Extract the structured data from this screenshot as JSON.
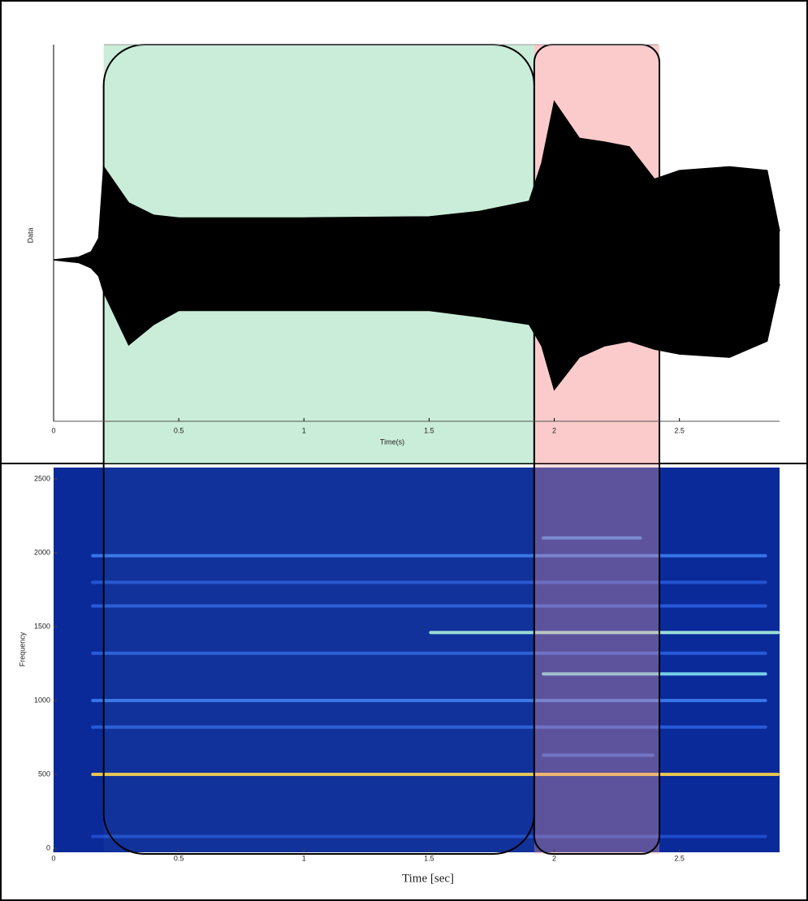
{
  "chart_data": [
    {
      "type": "band",
      "color": "#000000",
      "x": [
        0,
        0.1,
        0.15,
        0.18,
        0.2,
        0.3,
        0.4,
        0.5,
        1.0,
        1.5,
        1.7,
        1.9,
        1.95,
        2.0,
        2.1,
        2.2,
        2.3,
        2.4,
        2.5,
        2.7,
        2.85,
        2.9
      ],
      "upper": [
        0,
        0.05,
        0.15,
        0.4,
        1.73,
        1.06,
        0.83,
        0.78,
        0.78,
        0.8,
        0.9,
        1.09,
        1.8,
        2.94,
        2.26,
        2.19,
        2.1,
        1.5,
        1.66,
        1.73,
        1.66,
        0.53
      ],
      "lower": [
        0,
        -0.05,
        -0.15,
        -0.3,
        -0.6,
        -1.58,
        -1.2,
        -0.94,
        -0.94,
        -0.94,
        -1.06,
        -1.2,
        -1.6,
        -2.41,
        -1.81,
        -1.6,
        -1.51,
        -1.66,
        -1.75,
        -1.81,
        -1.51,
        -0.45
      ],
      "xlabel": "Time(s)",
      "ylabel": "Data",
      "xlim": [
        0,
        2.9
      ],
      "ylim": [
        -3,
        4
      ],
      "xticks": [
        0,
        0.5,
        1,
        1.5,
        2,
        2.5
      ]
    },
    {
      "type": "spectrogram",
      "background": "#0b2a9a",
      "xlabel": "Time [sec]",
      "ylabel": "Frequency",
      "xlim": [
        0,
        2.9
      ],
      "ylim": [
        0,
        2500
      ],
      "xticks": [
        0,
        0.5,
        1,
        1.5,
        2,
        2.5
      ],
      "yticks": [
        0,
        500,
        1000,
        1500,
        2000,
        2500
      ],
      "harmonics": [
        {
          "frequency": 80,
          "start": 0.15,
          "end": 2.85,
          "color": "#1f4fd0"
        },
        {
          "frequency": 500,
          "start": 0.15,
          "end": 2.9,
          "color": "#ffd54a"
        },
        {
          "frequency": 630,
          "start": 1.95,
          "end": 2.4,
          "color": "#2e63e0"
        },
        {
          "frequency": 820,
          "start": 0.15,
          "end": 2.85,
          "color": "#2a5fe0"
        },
        {
          "frequency": 1000,
          "start": 0.15,
          "end": 2.85,
          "color": "#3a7cf0"
        },
        {
          "frequency": 1180,
          "start": 1.95,
          "end": 2.85,
          "color": "#7fe0f0"
        },
        {
          "frequency": 1320,
          "start": 0.15,
          "end": 2.85,
          "color": "#2a5fe0"
        },
        {
          "frequency": 1460,
          "start": 1.5,
          "end": 2.9,
          "color": "#a8f0e0"
        },
        {
          "frequency": 1640,
          "start": 0.15,
          "end": 2.85,
          "color": "#2a5fe0"
        },
        {
          "frequency": 1800,
          "start": 0.15,
          "end": 2.85,
          "color": "#2658d8"
        },
        {
          "frequency": 1980,
          "start": 0.15,
          "end": 2.85,
          "color": "#3a7cf0"
        },
        {
          "frequency": 2100,
          "start": 1.95,
          "end": 2.35,
          "color": "#3f8af0"
        }
      ]
    }
  ],
  "highlights": [
    {
      "start": 0.2,
      "end": 1.92,
      "color": "#9edfb9"
    },
    {
      "start": 1.92,
      "end": 2.42,
      "color": "#f7a0a0"
    }
  ]
}
